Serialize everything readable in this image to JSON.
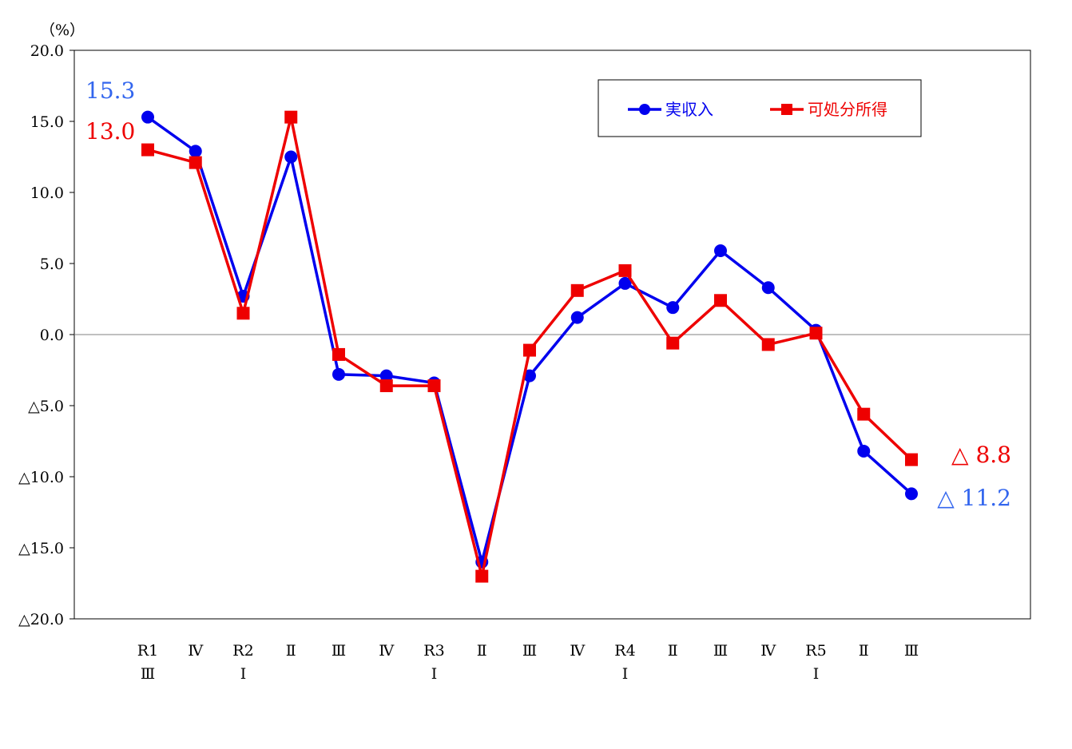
{
  "chart_data": {
    "type": "line",
    "unit_label": "（%）",
    "ylim": [
      -20,
      20
    ],
    "y_ticks": [
      20,
      15,
      10,
      5,
      0,
      -5,
      -10,
      -15,
      -20
    ],
    "y_tick_labels": [
      "20.0",
      "15.0",
      "10.0",
      "5.0",
      "0.0",
      "△5.0",
      "△10.0",
      "△15.0",
      "△20.0"
    ],
    "categories": [
      [
        "R1",
        "Ⅲ"
      ],
      [
        "Ⅳ",
        ""
      ],
      [
        "R2",
        "Ⅰ"
      ],
      [
        "Ⅱ",
        ""
      ],
      [
        "Ⅲ",
        ""
      ],
      [
        "Ⅳ",
        ""
      ],
      [
        "R3",
        "Ⅰ"
      ],
      [
        "Ⅱ",
        ""
      ],
      [
        "Ⅲ",
        ""
      ],
      [
        "Ⅳ",
        ""
      ],
      [
        "R4",
        "Ⅰ"
      ],
      [
        "Ⅱ",
        ""
      ],
      [
        "Ⅲ",
        ""
      ],
      [
        "Ⅳ",
        ""
      ],
      [
        "R5",
        "Ⅰ"
      ],
      [
        "Ⅱ",
        ""
      ],
      [
        "Ⅲ",
        ""
      ]
    ],
    "series": [
      {
        "name": "実収入",
        "color": "#0000EE",
        "marker": "circle",
        "values": [
          15.3,
          12.9,
          2.7,
          12.5,
          -2.8,
          -2.9,
          -3.4,
          -16.0,
          -2.9,
          1.2,
          3.6,
          1.9,
          5.9,
          3.3,
          0.3,
          -8.2,
          -11.2
        ]
      },
      {
        "name": "可処分所得",
        "color": "#EE0000",
        "marker": "square",
        "values": [
          13.0,
          12.1,
          1.5,
          15.3,
          -1.4,
          -3.6,
          -3.6,
          -17.0,
          -1.1,
          3.1,
          4.5,
          -0.6,
          2.4,
          -0.7,
          0.1,
          -5.6,
          -8.8
        ]
      }
    ],
    "annotations": [
      {
        "text": "15.3",
        "color": "#3366EE",
        "series": 0,
        "at": "start"
      },
      {
        "text": "13.0",
        "color": "#EE0000",
        "series": 1,
        "at": "start"
      },
      {
        "text": "△ 8.8",
        "color": "#EE0000",
        "series": 1,
        "at": "end"
      },
      {
        "text": "△ 11.2",
        "color": "#3366EE",
        "series": 0,
        "at": "end"
      }
    ],
    "legend_position": "top-right",
    "grid": false
  }
}
